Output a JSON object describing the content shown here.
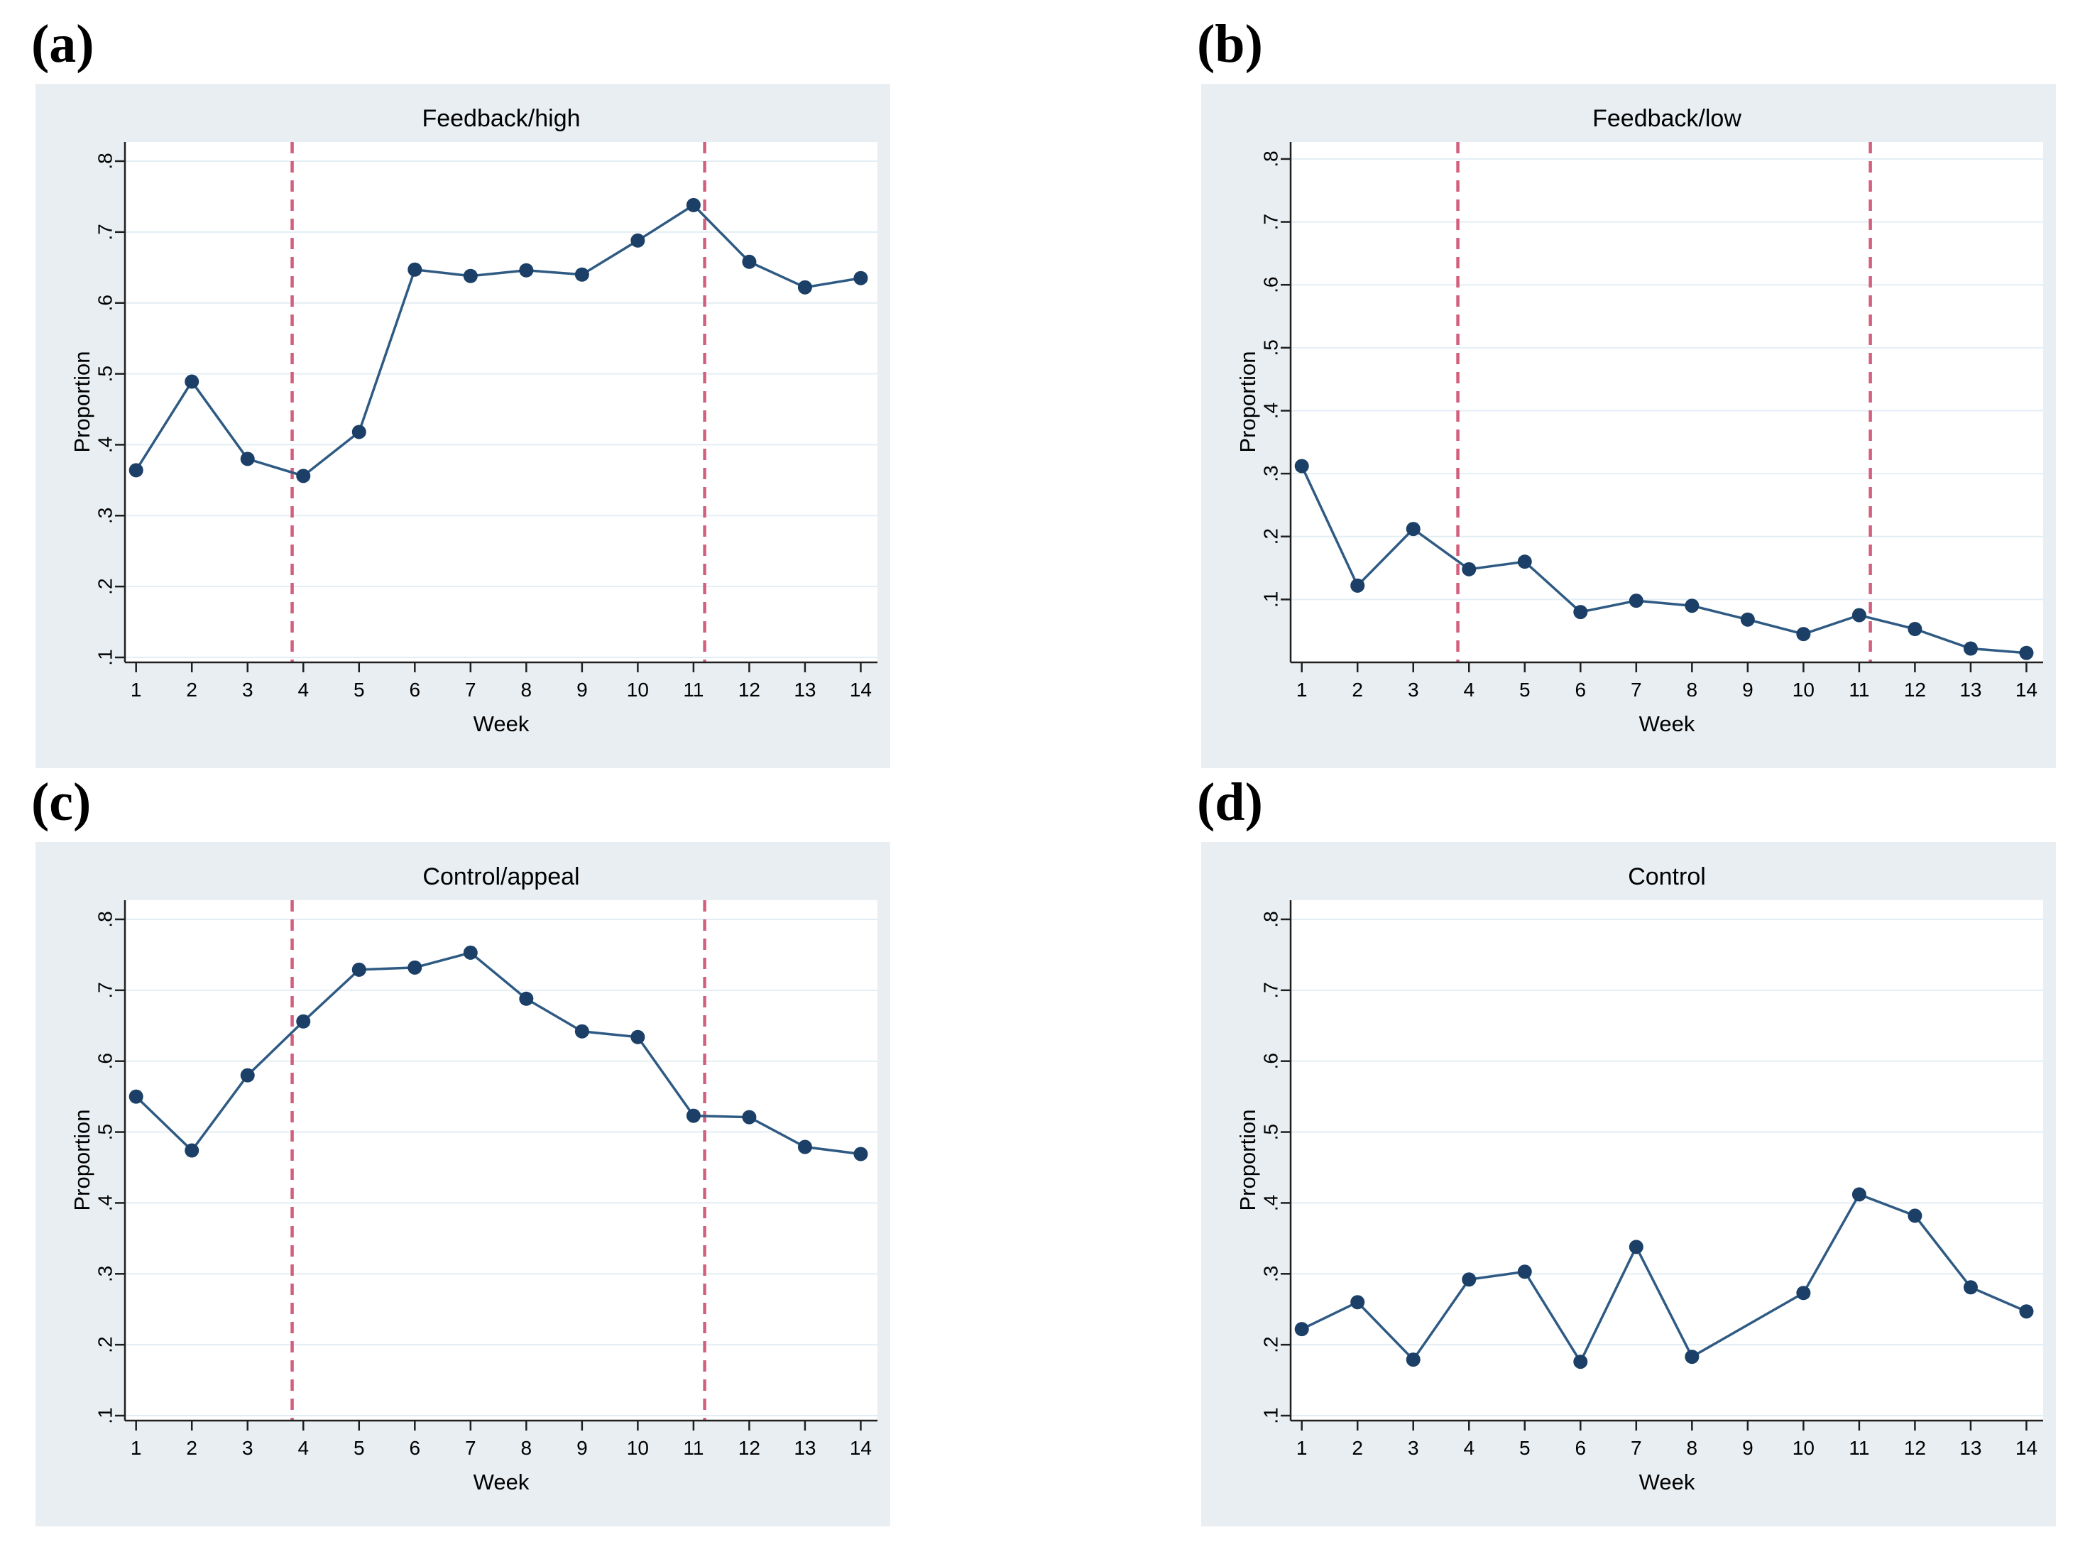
{
  "style": {
    "page_bg": "#ffffff",
    "panel_bg": "#e8eef2",
    "plot_bg": "#ffffff",
    "grid_color": "#e3eef4",
    "axis_color": "#1f1f1f",
    "line_color": "#2e5a83",
    "marker_color": "#1b3f66",
    "vline_color": "#d25f7d",
    "text_color": "#000000"
  },
  "figure": {
    "panels": [
      {
        "letter": "(a)"
      },
      {
        "letter": "(b)"
      },
      {
        "letter": "(c)"
      },
      {
        "letter": "(d)"
      }
    ]
  },
  "chart_data": [
    {
      "type": "line",
      "panel_letter": "(a)",
      "title": "Feedback/high",
      "xlabel": "Week",
      "ylabel": "Proportion",
      "x": [
        1,
        2,
        3,
        4,
        5,
        6,
        7,
        8,
        9,
        10,
        11,
        12,
        13,
        14
      ],
      "values": [
        0.364,
        0.489,
        0.38,
        0.356,
        0.418,
        0.647,
        0.638,
        0.646,
        0.64,
        0.688,
        0.738,
        0.658,
        0.622,
        0.635
      ],
      "xticks": [
        1,
        2,
        3,
        4,
        5,
        6,
        7,
        8,
        9,
        10,
        11,
        12,
        13,
        14
      ],
      "yticks": [
        0.1,
        0.2,
        0.3,
        0.4,
        0.5,
        0.6,
        0.7,
        0.8
      ],
      "ytick_labels": [
        ".1",
        ".2",
        ".3",
        ".4",
        ".5",
        ".6",
        ".7",
        ".8"
      ],
      "xlim": [
        0.8,
        14.3
      ],
      "ylim": [
        0.093,
        0.827
      ],
      "vlines": [
        3.8,
        11.2
      ],
      "grid": "horizontal",
      "legend": "none",
      "marker": "circle"
    },
    {
      "type": "line",
      "panel_letter": "(b)",
      "title": "Feedback/low",
      "xlabel": "Week",
      "ylabel": "Proportion",
      "x": [
        1,
        2,
        3,
        4,
        5,
        6,
        7,
        8,
        9,
        10,
        11,
        12,
        13,
        14
      ],
      "values": [
        0.312,
        0.122,
        0.212,
        0.148,
        0.16,
        0.08,
        0.098,
        0.09,
        0.068,
        0.045,
        0.075,
        0.053,
        0.022,
        0.015
      ],
      "xticks": [
        1,
        2,
        3,
        4,
        5,
        6,
        7,
        8,
        9,
        10,
        11,
        12,
        13,
        14
      ],
      "yticks": [
        0.1,
        0.2,
        0.3,
        0.4,
        0.5,
        0.6,
        0.7,
        0.8
      ],
      "ytick_labels": [
        ".1",
        ".2",
        ".3",
        ".4",
        ".5",
        ".6",
        ".7",
        ".8"
      ],
      "xlim": [
        0.8,
        14.3
      ],
      "ylim": [
        0.0,
        0.827
      ],
      "vlines": [
        3.8,
        11.2
      ],
      "grid": "horizontal",
      "legend": "none",
      "marker": "circle"
    },
    {
      "type": "line",
      "panel_letter": "(c)",
      "title": "Control/appeal",
      "xlabel": "Week",
      "ylabel": "Proportion",
      "x": [
        1,
        2,
        3,
        4,
        5,
        6,
        7,
        8,
        9,
        10,
        11,
        12,
        13,
        14
      ],
      "values": [
        0.55,
        0.474,
        0.58,
        0.656,
        0.729,
        0.732,
        0.753,
        0.688,
        0.642,
        0.634,
        0.523,
        0.521,
        0.479,
        0.469
      ],
      "xticks": [
        1,
        2,
        3,
        4,
        5,
        6,
        7,
        8,
        9,
        10,
        11,
        12,
        13,
        14
      ],
      "yticks": [
        0.1,
        0.2,
        0.3,
        0.4,
        0.5,
        0.6,
        0.7,
        0.8
      ],
      "ytick_labels": [
        ".1",
        ".2",
        ".3",
        ".4",
        ".5",
        ".6",
        ".7",
        ".8"
      ],
      "xlim": [
        0.8,
        14.3
      ],
      "ylim": [
        0.093,
        0.827
      ],
      "vlines": [
        3.8,
        11.2
      ],
      "grid": "horizontal",
      "legend": "none",
      "marker": "circle"
    },
    {
      "type": "line",
      "panel_letter": "(d)",
      "title": "Control",
      "xlabel": "Week",
      "ylabel": "Proportion",
      "x": [
        1,
        2,
        3,
        4,
        5,
        6,
        7,
        8,
        9,
        10,
        11,
        12,
        13,
        14
      ],
      "values": [
        0.222,
        0.26,
        0.179,
        0.292,
        0.303,
        0.176,
        0.338,
        0.183,
        null,
        0.273,
        0.412,
        0.382,
        0.281,
        0.247
      ],
      "xticks": [
        1,
        2,
        3,
        4,
        5,
        6,
        7,
        8,
        9,
        10,
        11,
        12,
        13,
        14
      ],
      "yticks": [
        0.1,
        0.2,
        0.3,
        0.4,
        0.5,
        0.6,
        0.7,
        0.8
      ],
      "ytick_labels": [
        ".1",
        ".2",
        ".3",
        ".4",
        ".5",
        ".6",
        ".7",
        ".8"
      ],
      "xlim": [
        0.8,
        14.3
      ],
      "ylim": [
        0.093,
        0.827
      ],
      "vlines": [],
      "grid": "horizontal",
      "legend": "none",
      "marker": "circle"
    }
  ]
}
